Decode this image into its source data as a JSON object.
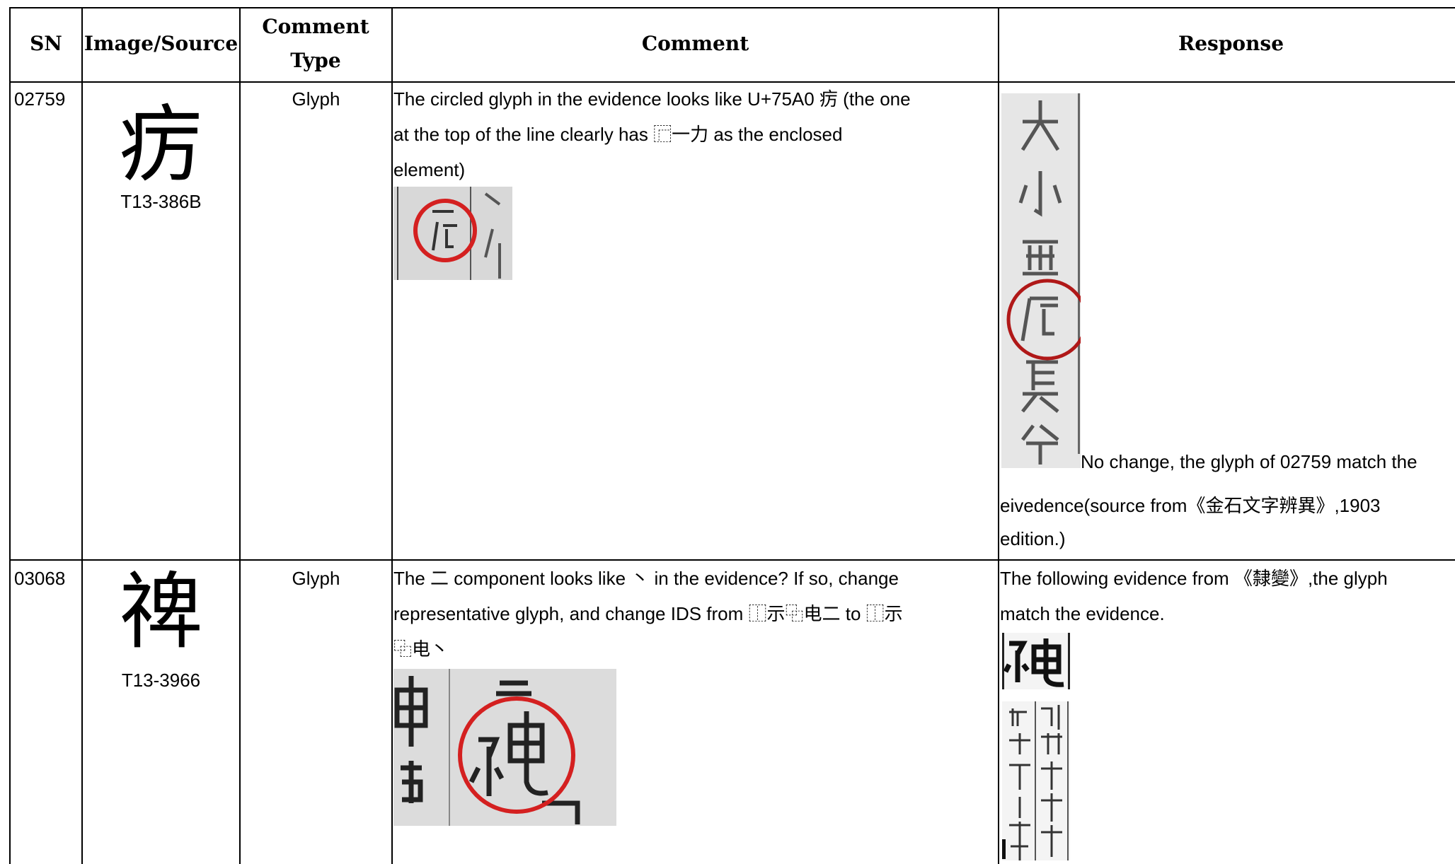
{
  "header": {
    "columns": [
      "SN",
      "Image/Source",
      "Comment Type",
      "Comment",
      "Response"
    ]
  },
  "rows": [
    {
      "sn": "02759",
      "glyph": "疠",
      "source": "T13-386B",
      "type": "Glyph",
      "comment": [
        "The circled glyph in the evidence looks like U+75A0 疠 (the one",
        "at the top of the line clearly has ⿸一力 as the enclosed",
        "element)"
      ],
      "response": [
        "No change, the glyph of 02759 match the",
        "eivedence(source from《金石文字辨異》,1903",
        "edition.)"
      ]
    },
    {
      "sn": "03068",
      "glyph": "禆",
      "source": "T13-3966",
      "type": "Glyph",
      "comment": [
        "The 二 component looks like 丶 in the evidence? If so, change",
        "representative glyph, and change IDS from ⿰示⿻电二 to ⿰示",
        "⿻电丶"
      ],
      "response": [
        "The following evidence from 《隸變》,the glyph",
        "match the evidence."
      ]
    }
  ]
}
